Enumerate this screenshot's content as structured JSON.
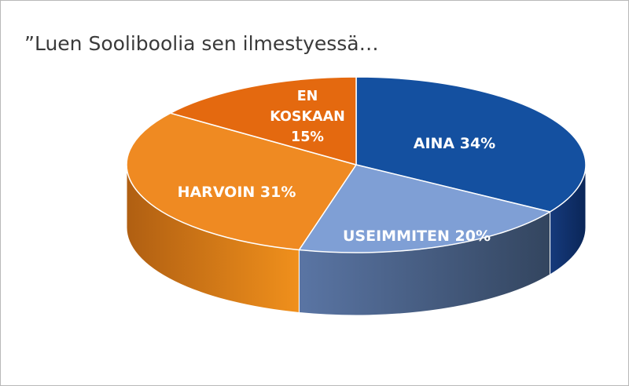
{
  "chart_data": {
    "type": "pie",
    "title": "”Luen Sooliboolia sen ilmestyessä…",
    "three_d": true,
    "legend": "none",
    "slices": [
      {
        "label": "AINA",
        "value": 34,
        "display": "AINA 34%",
        "color": "#1450a0",
        "side_color_dark": "#0a2658",
        "side_color_light": "#163a7c"
      },
      {
        "label": "USEIMMITEN",
        "value": 20,
        "display": "USEIMMITEN 20%",
        "color": "#7f9fd5",
        "side_color_dark": "#33455f",
        "side_color_light": "#5a75a4"
      },
      {
        "label": "HARVOIN",
        "value": 31,
        "display": "HARVOIN 31%",
        "color": "#ef8a22",
        "side_color_dark": "#b05f12",
        "side_color_light": "#f0901c"
      },
      {
        "label": "EN KOSKAAN",
        "value": 15,
        "display_lines": [
          "EN",
          "KOSKAAN",
          "15%"
        ],
        "color": "#e4690f",
        "side_color_dark": "#a84a08",
        "side_color_light": "#d06010"
      }
    ]
  }
}
